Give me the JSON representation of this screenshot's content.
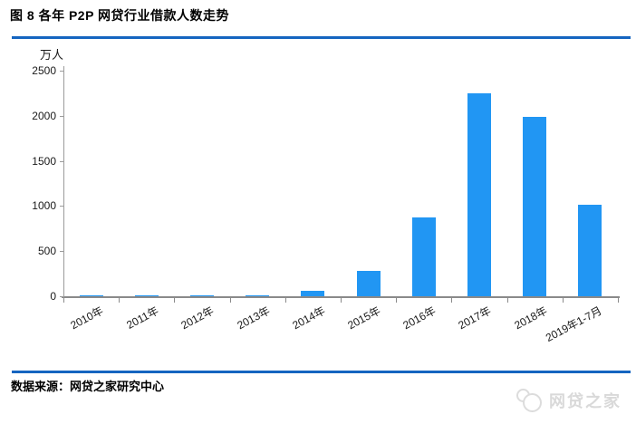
{
  "header": {
    "title": "图 8 各年 P2P 网贷行业借款人数走势"
  },
  "footer": {
    "source": "数据来源：网贷之家研究中心",
    "watermark": "网贷之家"
  },
  "colors": {
    "bar": "#2196F3",
    "rule_line": "#1565C0",
    "axis": "#8a8a8a",
    "watermark": "#d9d9d9"
  },
  "icons": {
    "watermark_logo": "wdzj-logo-icon"
  },
  "chart_data": {
    "type": "bar",
    "title": "图 8 各年 P2P 网贷行业借款人数走势",
    "unit_label": "万人",
    "categories": [
      "2010年",
      "2011年",
      "2012年",
      "2013年",
      "2014年",
      "2015年",
      "2016年",
      "2017年",
      "2018年",
      "2019年1-7月"
    ],
    "values": [
      8,
      12,
      13,
      15,
      63,
      285,
      875,
      2245,
      1990,
      1018
    ],
    "xlabel": "",
    "ylabel": "万人",
    "ylim": [
      0,
      2500
    ],
    "yticks": [
      0,
      500,
      1000,
      1500,
      2000,
      2500
    ],
    "grid": false,
    "legend": false,
    "bar_color": "#2196F3"
  }
}
